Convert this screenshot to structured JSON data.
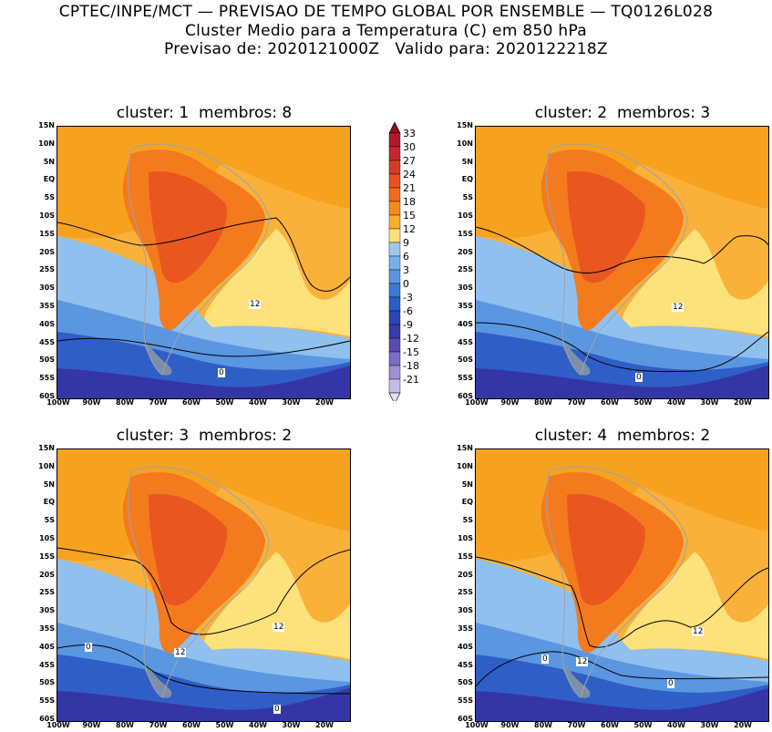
{
  "header": {
    "line1": "CPTEC/INPE/MCT — PREVISAO DE TEMPO GLOBAL POR ENSEMBLE — TQ0126L028",
    "line2": "Cluster Medio para a Temperatura (C) em 850 hPa",
    "line3": "Previsao de: 2020121000Z   Valido para: 2020122218Z"
  },
  "panels": [
    {
      "title": "cluster: 1  membros: 8",
      "labels": [
        "12",
        "0"
      ]
    },
    {
      "title": "cluster: 2  membros: 3",
      "labels": [
        "12",
        "0"
      ]
    },
    {
      "title": "cluster: 3  membros: 2",
      "labels": [
        "12",
        "12",
        "0",
        "0"
      ]
    },
    {
      "title": "cluster: 4  membros: 2",
      "labels": [
        "12",
        "12",
        "0",
        "0"
      ]
    }
  ],
  "lat_labels": [
    "15N",
    "10N",
    "5N",
    "EQ",
    "5S",
    "10S",
    "15S",
    "20S",
    "25S",
    "30S",
    "35S",
    "40S",
    "45S",
    "50S",
    "55S",
    "60S"
  ],
  "lon_labels": [
    "100W",
    "90W",
    "80W",
    "70W",
    "60W",
    "50W",
    "40W",
    "30W",
    "20W"
  ],
  "colorbar": {
    "ticks": [
      "33",
      "30",
      "27",
      "24",
      "21",
      "18",
      "15",
      "12",
      "9",
      "6",
      "3",
      "0",
      "-3",
      "-6",
      "-9",
      "-12",
      "-15",
      "-18",
      "-21"
    ],
    "colors": [
      "#b2182b",
      "#c6262e",
      "#d83a28",
      "#e95220",
      "#f56a1a",
      "#f98a1a",
      "#fbae2a",
      "#fde07a",
      "#9fc8f0",
      "#7ab0ea",
      "#5a96e2",
      "#3d7ad8",
      "#2b5ec8",
      "#2a46b8",
      "#3a3aa8",
      "#5a4ab6",
      "#7d6cc6",
      "#a090d6",
      "#c8bce8"
    ],
    "top_color": "#8e0f1e",
    "bottom_color": "#e4dcf4"
  }
}
